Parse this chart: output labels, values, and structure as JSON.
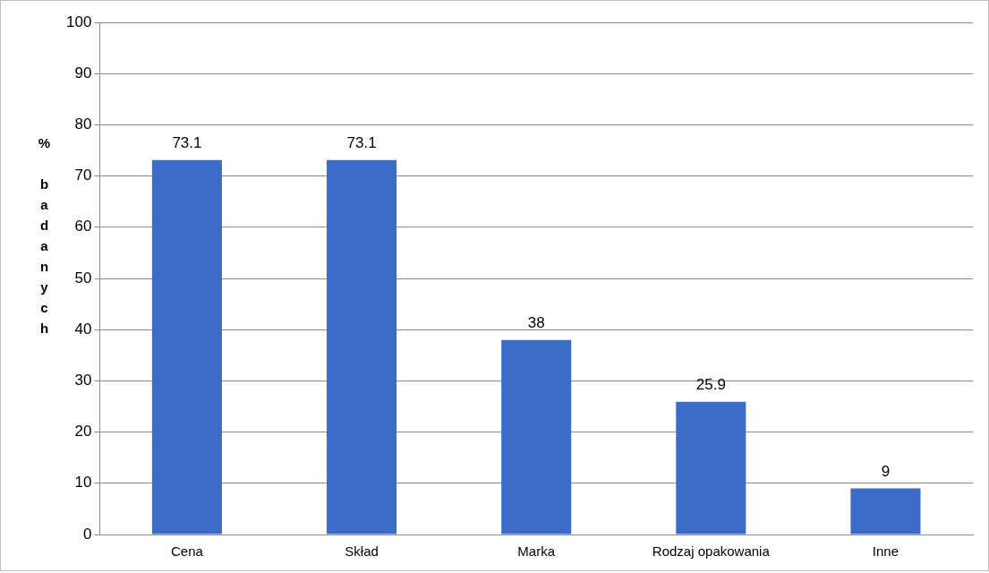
{
  "chart_data": {
    "type": "bar",
    "ylabel": "% badanych",
    "categories": [
      "Cena",
      "Skład",
      "Marka",
      "Rodzaj opakowania",
      "Inne"
    ],
    "values": [
      73.1,
      73.1,
      38,
      25.9,
      9
    ],
    "color": "#3b6cc7",
    "ylim": [
      0,
      100
    ],
    "yticks": [
      0,
      10,
      20,
      30,
      40,
      50,
      60,
      70,
      80,
      90,
      100
    ],
    "grid": "y",
    "legend": false,
    "data_labels": true
  }
}
